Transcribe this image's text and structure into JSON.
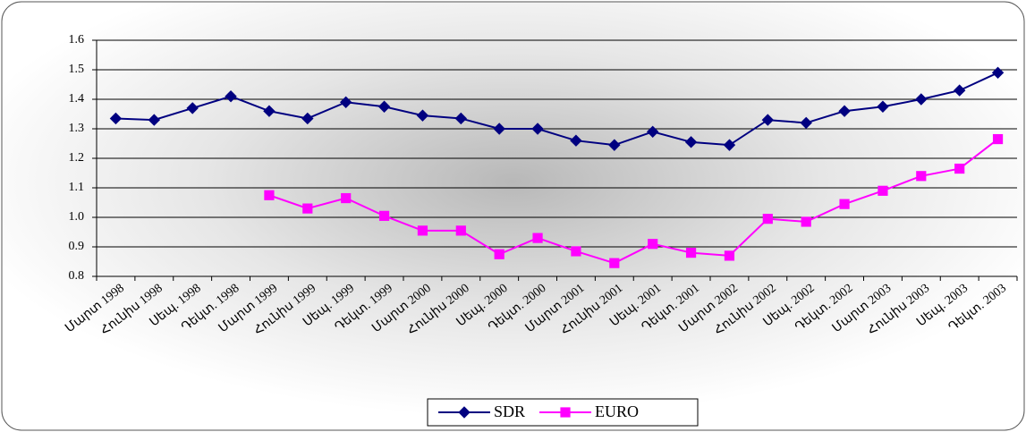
{
  "chart_data": {
    "type": "line",
    "categories": [
      "Մարտ 1998",
      "Հունիս 1998",
      "Սեպ. 1998",
      "Դեկտ. 1998",
      "Մարտ 1999",
      "Հունիս 1999",
      "Սեպ. 1999",
      "Դեկտ. 1999",
      "Մարտ 2000",
      "Հունիս 2000",
      "Սեպ. 2000",
      "Դեկտ. 2000",
      "Մարտ 2001",
      "Հունիս 2001",
      "Սեպ. 2001",
      "Դեկտ. 2001",
      "Մարտ 2002",
      "Հունիս 2002",
      "Սեպ. 2002",
      "Դեկտ. 2002",
      "Մարտ 2003",
      "Հունիս 2003",
      "Սեպ. 2003",
      "Դեկտ. 2003"
    ],
    "series": [
      {
        "name": "SDR",
        "color": "#000080",
        "marker": "diamond",
        "values": [
          1.335,
          1.33,
          1.37,
          1.41,
          1.36,
          1.335,
          1.39,
          1.375,
          1.345,
          1.335,
          1.3,
          1.3,
          1.26,
          1.245,
          1.29,
          1.255,
          1.245,
          1.33,
          1.32,
          1.36,
          1.375,
          1.4,
          1.43,
          1.49
        ]
      },
      {
        "name": "EURO",
        "color": "#ff00ff",
        "marker": "square",
        "values": [
          null,
          null,
          null,
          null,
          1.075,
          1.03,
          1.065,
          1.005,
          0.955,
          0.955,
          0.875,
          0.93,
          0.885,
          0.845,
          0.91,
          0.88,
          0.87,
          0.995,
          0.985,
          1.045,
          1.09,
          1.14,
          1.165,
          1.265
        ]
      }
    ],
    "ylim": [
      0.8,
      1.6
    ],
    "yticks": [
      0.8,
      0.9,
      {
        "value": 1,
        "label": "1.0"
      },
      1.1,
      1.2,
      1.3,
      1.4,
      1.5,
      1.6
    ],
    "grid": true,
    "legend": "bottom"
  }
}
